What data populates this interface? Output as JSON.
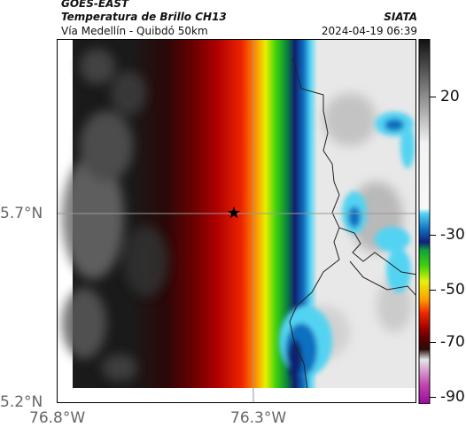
{
  "header": {
    "satellite": "GOES-EAST",
    "title": "Temperatura de Brillo CH13",
    "subtitle": "Vía Medellín - Quibdó 50km",
    "organization": "SIATA",
    "datetime": "2024-04-19 06:39"
  },
  "axes": {
    "lat_labels": [
      "5.7°N",
      "5.2°N"
    ],
    "lon_labels": [
      "76.8°W",
      "76.3°W"
    ]
  },
  "colorbar": {
    "labels": [
      "20",
      "-30",
      "-50",
      "-70",
      "-90"
    ],
    "values": [
      20,
      -30,
      -50,
      -70,
      -90
    ],
    "range": [
      -95,
      45
    ],
    "stops": [
      {
        "t": 45,
        "color": "#101010"
      },
      {
        "t": 5,
        "color": "#f2f2f2"
      },
      {
        "t": -20,
        "color": "#f8f8f8"
      },
      {
        "t": -22,
        "color": "#53d3f2"
      },
      {
        "t": -28,
        "color": "#1070c0"
      },
      {
        "t": -33,
        "color": "#10207a"
      },
      {
        "t": -36,
        "color": "#0ea23a"
      },
      {
        "t": -42,
        "color": "#3ed20c"
      },
      {
        "t": -48,
        "color": "#e4f20c"
      },
      {
        "t": -55,
        "color": "#ff9d00"
      },
      {
        "t": -60,
        "color": "#ef2a00"
      },
      {
        "t": -66,
        "color": "#a20000"
      },
      {
        "t": -70,
        "color": "#5a0000"
      },
      {
        "t": -74,
        "color": "#2a0a0a"
      },
      {
        "t": -78,
        "color": "#e6e6e6"
      },
      {
        "t": -82,
        "color": "#d8a0d0"
      },
      {
        "t": -88,
        "color": "#c040b0"
      },
      {
        "t": -95,
        "color": "#9a0a98"
      }
    ]
  },
  "map": {
    "marker_icon": "star-icon"
  }
}
